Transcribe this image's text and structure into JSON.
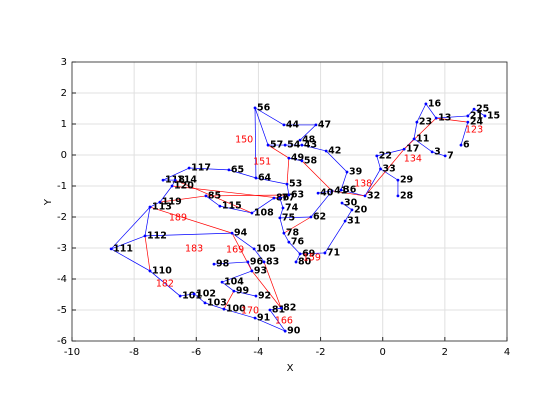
{
  "chart_data": {
    "type": "graph",
    "xlabel": "X",
    "ylabel": "Y",
    "xlim": [
      -10,
      4
    ],
    "ylim": [
      -6,
      3
    ],
    "xticks": [
      -10,
      -8,
      -6,
      -4,
      -2,
      0,
      2,
      4
    ],
    "yticks": [
      -6,
      -5,
      -4,
      -3,
      -2,
      -1,
      0,
      1,
      2,
      3
    ],
    "grid": true,
    "edge_color": "#0000ff",
    "red_edge_color": "#ff0000",
    "label_color": "#ff0000",
    "nodes": [
      {
        "label": "56",
        "x": -4.11,
        "y": 1.52
      },
      {
        "label": "44",
        "x": -3.18,
        "y": 0.97
      },
      {
        "label": "47",
        "x": -2.15,
        "y": 0.97
      },
      {
        "label": "57",
        "x": -3.69,
        "y": 0.32
      },
      {
        "label": "54",
        "x": -3.14,
        "y": 0.32
      },
      {
        "label": "43",
        "x": -2.6,
        "y": 0.32
      },
      {
        "label": "42",
        "x": -1.82,
        "y": 0.13
      },
      {
        "label": "48",
        "x": -2.66,
        "y": 0.48
      },
      {
        "label": "49",
        "x": -3.02,
        "y": -0.1
      },
      {
        "label": "58",
        "x": -2.6,
        "y": -0.19
      },
      {
        "label": "65",
        "x": -4.95,
        "y": -0.48
      },
      {
        "label": "64",
        "x": -4.08,
        "y": -0.74
      },
      {
        "label": "53",
        "x": -3.08,
        "y": -0.94
      },
      {
        "label": "39",
        "x": -1.15,
        "y": -0.55
      },
      {
        "label": "41",
        "x": -1.63,
        "y": -1.16
      },
      {
        "label": "40",
        "x": -2.08,
        "y": -1.23
      },
      {
        "label": "36",
        "x": -1.34,
        "y": -1.13
      },
      {
        "label": "32",
        "x": -0.57,
        "y": -1.32
      },
      {
        "label": "30",
        "x": -1.31,
        "y": -1.55
      },
      {
        "label": "20",
        "x": -0.99,
        "y": -1.77
      },
      {
        "label": "31",
        "x": -1.21,
        "y": -2.13
      },
      {
        "label": "62",
        "x": -2.31,
        "y": -2.0
      },
      {
        "label": "33",
        "x": -0.07,
        "y": -0.45
      },
      {
        "label": "22",
        "x": -0.19,
        "y": -0.03
      },
      {
        "label": "29",
        "x": 0.49,
        "y": -0.81
      },
      {
        "label": "28",
        "x": 0.49,
        "y": -1.32
      },
      {
        "label": "17",
        "x": 0.69,
        "y": 0.19
      },
      {
        "label": "16",
        "x": 1.39,
        "y": 1.65
      },
      {
        "label": "23",
        "x": 1.1,
        "y": 1.06
      },
      {
        "label": "13",
        "x": 1.72,
        "y": 1.19
      },
      {
        "label": "25",
        "x": 2.94,
        "y": 1.48
      },
      {
        "label": "15",
        "x": 3.29,
        "y": 1.26
      },
      {
        "label": "21",
        "x": 2.74,
        "y": 1.26
      },
      {
        "label": "24",
        "x": 2.74,
        "y": 1.06
      },
      {
        "label": "11",
        "x": 1.01,
        "y": 0.52
      },
      {
        "label": "7",
        "x": 2.01,
        "y": -0.03
      },
      {
        "label": "3",
        "x": 1.59,
        "y": 0.1
      },
      {
        "label": "6",
        "x": 2.52,
        "y": 0.32
      },
      {
        "label": "117",
        "x": -6.23,
        "y": -0.42
      },
      {
        "label": "118",
        "x": -7.07,
        "y": -0.81
      },
      {
        "label": "114",
        "x": -6.68,
        "y": -0.81
      },
      {
        "label": "120",
        "x": -6.78,
        "y": -1.0
      },
      {
        "label": "119",
        "x": -7.17,
        "y": -1.52
      },
      {
        "label": "113",
        "x": -7.49,
        "y": -1.68
      },
      {
        "label": "112",
        "x": -7.65,
        "y": -2.61
      },
      {
        "label": "111",
        "x": -8.74,
        "y": -3.03
      },
      {
        "label": "110",
        "x": -7.49,
        "y": -3.74
      },
      {
        "label": "85",
        "x": -5.69,
        "y": -1.32
      },
      {
        "label": "115",
        "x": -5.24,
        "y": -1.65
      },
      {
        "label": "108",
        "x": -4.21,
        "y": -1.87
      },
      {
        "label": "86",
        "x": -3.5,
        "y": -1.39
      },
      {
        "label": "77",
        "x": -3.31,
        "y": -1.39
      },
      {
        "label": "74",
        "x": -3.21,
        "y": -1.71
      },
      {
        "label": "75",
        "x": -3.31,
        "y": -2.03
      },
      {
        "label": "78",
        "x": -3.18,
        "y": -2.52
      },
      {
        "label": "76",
        "x": -3.02,
        "y": -2.81
      },
      {
        "label": "69",
        "x": -2.66,
        "y": -3.19
      },
      {
        "label": "71",
        "x": -1.86,
        "y": -3.16
      },
      {
        "label": "80",
        "x": -2.79,
        "y": -3.45
      },
      {
        "label": "94",
        "x": -4.85,
        "y": -2.52
      },
      {
        "label": "105",
        "x": -4.14,
        "y": -3.03
      },
      {
        "label": "83",
        "x": -3.82,
        "y": -3.45
      },
      {
        "label": "98",
        "x": -5.43,
        "y": -3.52
      },
      {
        "label": "96",
        "x": -4.34,
        "y": -3.45
      },
      {
        "label": "93",
        "x": -4.21,
        "y": -3.74
      },
      {
        "label": "104",
        "x": -5.17,
        "y": -4.1
      },
      {
        "label": "99",
        "x": -4.79,
        "y": -4.39
      },
      {
        "label": "92",
        "x": -4.08,
        "y": -4.55
      },
      {
        "label": "101",
        "x": -6.52,
        "y": -4.55
      },
      {
        "label": "102",
        "x": -6.07,
        "y": -4.48
      },
      {
        "label": "103",
        "x": -5.72,
        "y": -4.77
      },
      {
        "label": "100",
        "x": -5.11,
        "y": -4.97
      },
      {
        "label": "91",
        "x": -4.11,
        "y": -5.26
      },
      {
        "label": "81",
        "x": -3.63,
        "y": -5.0
      },
      {
        "label": "82",
        "x": -3.27,
        "y": -4.94
      },
      {
        "label": "90",
        "x": -3.14,
        "y": -5.68
      },
      {
        "label": "63",
        "x": -3.02,
        "y": -1.29
      }
    ],
    "red_labels": [
      {
        "label": "150",
        "x": -4.46,
        "y": 0.48
      },
      {
        "label": "151",
        "x": -3.88,
        "y": -0.23
      },
      {
        "label": "183",
        "x": -6.07,
        "y": -3.03
      },
      {
        "label": "182",
        "x": -7.01,
        "y": -4.16
      },
      {
        "label": "166",
        "x": -3.18,
        "y": -5.35
      },
      {
        "label": "159",
        "x": -2.28,
        "y": -3.32
      },
      {
        "label": "123",
        "x": 2.94,
        "y": 0.81
      },
      {
        "label": "138",
        "x": -0.63,
        "y": -0.94
      },
      {
        "label": "134",
        "x": 0.97,
        "y": -0.13
      },
      {
        "label": "189",
        "x": -6.59,
        "y": -2.03
      },
      {
        "label": "169",
        "x": -4.75,
        "y": -3.06
      },
      {
        "label": "170",
        "x": -4.27,
        "y": -5.03
      }
    ],
    "edges": [
      [
        0,
        1
      ],
      [
        1,
        2
      ],
      [
        0,
        3
      ],
      [
        3,
        4
      ],
      [
        4,
        5
      ],
      [
        5,
        6
      ],
      [
        2,
        7
      ],
      [
        8,
        9
      ],
      [
        6,
        13
      ],
      [
        10,
        11
      ],
      [
        11,
        12
      ],
      [
        13,
        16
      ],
      [
        16,
        17
      ],
      [
        17,
        22
      ],
      [
        22,
        23
      ],
      [
        23,
        26
      ],
      [
        26,
        34
      ],
      [
        34,
        28
      ],
      [
        28,
        27
      ],
      [
        27,
        29
      ],
      [
        29,
        32
      ],
      [
        32,
        30
      ],
      [
        30,
        31
      ],
      [
        33,
        37
      ],
      [
        35,
        36
      ],
      [
        36,
        34
      ],
      [
        24,
        25
      ],
      [
        22,
        24
      ],
      [
        18,
        19
      ],
      [
        19,
        20
      ],
      [
        15,
        14
      ],
      [
        14,
        21
      ],
      [
        21,
        53
      ],
      [
        38,
        39
      ],
      [
        39,
        40
      ],
      [
        40,
        41
      ],
      [
        41,
        42
      ],
      [
        42,
        43
      ],
      [
        43,
        44
      ],
      [
        44,
        45
      ],
      [
        45,
        46
      ],
      [
        46,
        68
      ],
      [
        68,
        69
      ],
      [
        69,
        70
      ],
      [
        70,
        71
      ],
      [
        71,
        72
      ],
      [
        72,
        75
      ],
      [
        75,
        73
      ],
      [
        73,
        74
      ],
      [
        47,
        48
      ],
      [
        48,
        49
      ],
      [
        49,
        50
      ],
      [
        50,
        51
      ],
      [
        51,
        52
      ],
      [
        52,
        53
      ],
      [
        53,
        54
      ],
      [
        54,
        55
      ],
      [
        55,
        56
      ],
      [
        56,
        57
      ],
      [
        56,
        58
      ],
      [
        59,
        60
      ],
      [
        60,
        61
      ],
      [
        62,
        63
      ],
      [
        63,
        64
      ],
      [
        64,
        65
      ],
      [
        65,
        66
      ],
      [
        66,
        67
      ],
      [
        38,
        10
      ],
      [
        12,
        76
      ],
      [
        76,
        51
      ],
      [
        45,
        43
      ],
      [
        44,
        59
      ],
      [
        20,
        57
      ],
      [
        0,
        11
      ]
    ],
    "red_edges": [
      [
        40,
        49
      ],
      [
        42,
        47
      ],
      [
        47,
        76
      ],
      [
        9,
        14
      ],
      [
        14,
        17
      ],
      [
        17,
        26
      ],
      [
        26,
        29
      ],
      [
        29,
        33
      ],
      [
        43,
        59
      ],
      [
        59,
        64
      ],
      [
        64,
        74
      ],
      [
        44,
        46
      ],
      [
        3,
        8
      ],
      [
        8,
        12
      ],
      [
        41,
        51
      ],
      [
        66,
        71
      ],
      [
        61,
        74
      ],
      [
        21,
        54
      ]
    ]
  }
}
